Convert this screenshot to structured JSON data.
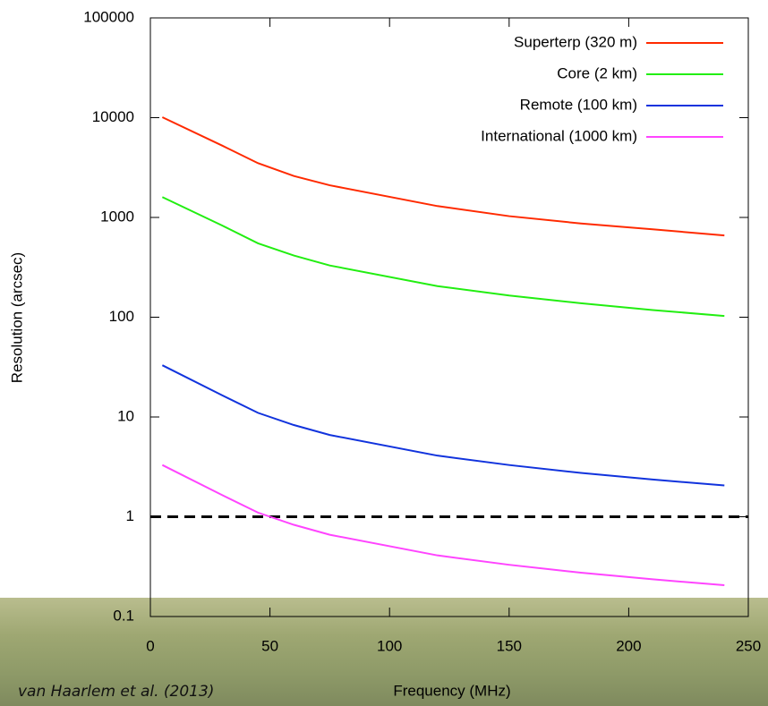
{
  "chart_data": {
    "type": "line",
    "xlabel": "Frequency (MHz)",
    "ylabel": "Resolution (arcsec)",
    "credit": "van Haarlem et al. (2013)",
    "x": [
      5,
      30,
      45,
      60,
      75,
      120,
      150,
      180,
      210,
      240
    ],
    "series": [
      {
        "name": "Superterp (320 m)",
        "color": "#ff2a00",
        "values": [
          10100,
          5250,
          3500,
          2600,
          2100,
          1300,
          1030,
          870,
          760,
          660
        ]
      },
      {
        "name": "Core (2 km)",
        "color": "#22ee11",
        "values": [
          1600,
          830,
          550,
          415,
          330,
          205,
          165,
          138,
          118,
          103
        ]
      },
      {
        "name": "Remote (100 km)",
        "color": "#1133dd",
        "values": [
          33,
          16.5,
          11,
          8.3,
          6.6,
          4.1,
          3.3,
          2.75,
          2.36,
          2.06
        ]
      },
      {
        "name": "International (1000 km)",
        "color": "#ff44ff",
        "values": [
          3.3,
          1.65,
          1.1,
          0.83,
          0.66,
          0.41,
          0.33,
          0.275,
          0.236,
          0.206
        ]
      }
    ],
    "hline": 1,
    "xlim": [
      0,
      250
    ],
    "xticks": [
      0,
      50,
      100,
      150,
      200,
      250
    ],
    "ylim": [
      0.1,
      100000
    ],
    "yticks": [
      0.1,
      1,
      10,
      100,
      1000,
      10000,
      100000
    ],
    "log_y": true,
    "legend": "top-right"
  }
}
